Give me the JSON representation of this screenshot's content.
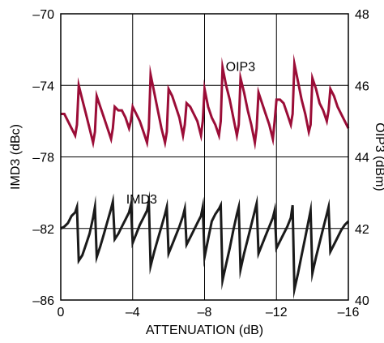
{
  "chart_data": {
    "type": "line",
    "xlabel": "ATTENUATION (dB)",
    "ylabel_left": "IMD3 (dBc)",
    "ylabel_right": "OIP3 (dBm)",
    "xlim": [
      0,
      -16
    ],
    "ylim_left": [
      -86,
      -70
    ],
    "ylim_right": [
      40,
      48
    ],
    "x_ticks": [
      0,
      -4,
      -8,
      -12,
      -16
    ],
    "x_tick_labels": [
      "0",
      "–4",
      "–8",
      "–12",
      "–16"
    ],
    "y_left_ticks": [
      -70,
      -74,
      -78,
      -82,
      -86
    ],
    "y_left_tick_labels": [
      "–70",
      "–74",
      "–78",
      "–82",
      "–86"
    ],
    "y_right_ticks": [
      48,
      46,
      44,
      42,
      40
    ],
    "y_right_tick_labels": [
      "48",
      "46",
      "44",
      "42",
      "40"
    ],
    "grid": true,
    "series": [
      {
        "name": "OIP3",
        "axis": "right",
        "color": "#9b0d37",
        "x": [
          0,
          -0.2,
          -0.4,
          -0.6,
          -0.8,
          -0.9,
          -1.0,
          -1.2,
          -1.4,
          -1.6,
          -1.8,
          -1.9,
          -2.0,
          -2.2,
          -2.4,
          -2.6,
          -2.8,
          -2.9,
          -3.0,
          -3.2,
          -3.4,
          -3.6,
          -3.8,
          -3.9,
          -4.0,
          -4.2,
          -4.4,
          -4.6,
          -4.8,
          -4.9,
          -5.0,
          -5.2,
          -5.4,
          -5.6,
          -5.8,
          -5.9,
          -6.0,
          -6.2,
          -6.4,
          -6.6,
          -6.8,
          -6.9,
          -7.0,
          -7.2,
          -7.4,
          -7.6,
          -7.8,
          -7.9,
          -8.0,
          -8.2,
          -8.4,
          -8.6,
          -8.8,
          -8.9,
          -9.0,
          -9.2,
          -9.4,
          -9.6,
          -9.8,
          -9.9,
          -10.0,
          -10.2,
          -10.4,
          -10.6,
          -10.8,
          -10.9,
          -11.0,
          -11.2,
          -11.4,
          -11.6,
          -11.8,
          -11.9,
          -12.0,
          -12.2,
          -12.4,
          -12.6,
          -12.8,
          -12.9,
          -13.0,
          -13.2,
          -13.4,
          -13.6,
          -13.8,
          -13.9,
          -14.0,
          -14.2,
          -14.4,
          -14.6,
          -14.8,
          -14.9,
          -15.0,
          -15.2,
          -15.4,
          -15.6,
          -15.8,
          -16.0
        ],
        "values": [
          45.2,
          45.2,
          45.0,
          44.8,
          44.6,
          44.9,
          46.0,
          45.6,
          45.2,
          44.8,
          44.4,
          44.7,
          45.7,
          45.4,
          45.1,
          44.8,
          44.5,
          44.8,
          45.4,
          45.3,
          45.3,
          45.1,
          44.8,
          45.0,
          45.4,
          45.2,
          45.0,
          44.7,
          44.4,
          44.8,
          46.3,
          45.8,
          45.3,
          44.8,
          44.4,
          44.7,
          45.9,
          45.7,
          45.4,
          45.1,
          44.6,
          44.9,
          45.5,
          45.4,
          45.2,
          45.0,
          44.6,
          45.0,
          45.9,
          45.4,
          45.1,
          44.9,
          44.6,
          45.0,
          46.5,
          46.0,
          45.6,
          45.1,
          44.6,
          44.9,
          46.2,
          45.8,
          45.3,
          44.9,
          44.4,
          44.8,
          45.8,
          45.5,
          45.2,
          44.9,
          44.5,
          45.0,
          45.6,
          45.6,
          45.5,
          45.2,
          44.9,
          45.2,
          46.6,
          46.1,
          45.6,
          45.2,
          44.7,
          44.9,
          46.2,
          45.9,
          45.5,
          45.3,
          45.0,
          45.3,
          45.9,
          45.7,
          45.4,
          45.2,
          45.0,
          44.8
        ]
      },
      {
        "name": "IMD3",
        "axis": "left",
        "color": "#1a1a1a",
        "x": [
          0,
          -0.2,
          -0.4,
          -0.6,
          -0.8,
          -0.9,
          -1.0,
          -1.2,
          -1.4,
          -1.6,
          -1.8,
          -1.9,
          -2.0,
          -2.2,
          -2.4,
          -2.6,
          -2.8,
          -2.9,
          -3.0,
          -3.2,
          -3.4,
          -3.6,
          -3.8,
          -3.9,
          -4.0,
          -4.2,
          -4.4,
          -4.6,
          -4.8,
          -4.9,
          -5.0,
          -5.2,
          -5.4,
          -5.6,
          -5.8,
          -5.9,
          -6.0,
          -6.2,
          -6.4,
          -6.6,
          -6.8,
          -6.9,
          -7.0,
          -7.2,
          -7.4,
          -7.6,
          -7.8,
          -7.9,
          -8.0,
          -8.2,
          -8.4,
          -8.6,
          -8.8,
          -8.9,
          -9.0,
          -9.2,
          -9.4,
          -9.6,
          -9.8,
          -9.9,
          -10.0,
          -10.2,
          -10.4,
          -10.6,
          -10.8,
          -10.9,
          -11.0,
          -11.2,
          -11.4,
          -11.6,
          -11.8,
          -11.9,
          -12.0,
          -12.2,
          -12.4,
          -12.6,
          -12.8,
          -12.9,
          -13.0,
          -13.2,
          -13.4,
          -13.6,
          -13.8,
          -13.9,
          -14.0,
          -14.2,
          -14.4,
          -14.6,
          -14.8,
          -14.9,
          -15.0,
          -15.2,
          -15.4,
          -15.6,
          -15.8,
          -16.0
        ],
        "values": [
          -82.0,
          -81.9,
          -81.7,
          -81.3,
          -81.1,
          -80.8,
          -83.8,
          -83.5,
          -82.9,
          -82.3,
          -81.4,
          -80.8,
          -83.6,
          -83.0,
          -82.3,
          -81.6,
          -80.9,
          -80.5,
          -82.6,
          -82.3,
          -81.9,
          -81.5,
          -81.1,
          -80.7,
          -82.8,
          -82.3,
          -81.8,
          -81.4,
          -81.0,
          -80.5,
          -84.1,
          -83.3,
          -82.6,
          -81.9,
          -81.2,
          -80.8,
          -83.4,
          -82.9,
          -82.4,
          -81.9,
          -81.3,
          -80.9,
          -82.9,
          -82.5,
          -82.1,
          -81.7,
          -81.3,
          -80.8,
          -83.6,
          -82.6,
          -81.6,
          -81.2,
          -80.9,
          -80.7,
          -84.9,
          -84.0,
          -83.1,
          -82.1,
          -81.2,
          -80.8,
          -84.3,
          -83.4,
          -82.6,
          -81.8,
          -81.0,
          -80.6,
          -83.4,
          -82.9,
          -82.4,
          -81.9,
          -81.4,
          -81.0,
          -83.1,
          -82.7,
          -82.3,
          -81.9,
          -81.4,
          -80.7,
          -85.4,
          -84.5,
          -83.5,
          -82.5,
          -81.5,
          -81.0,
          -84.5,
          -83.6,
          -82.8,
          -82.0,
          -81.2,
          -80.8,
          -83.3,
          -82.9,
          -82.5,
          -82.1,
          -81.8,
          -81.6
        ]
      }
    ],
    "annotations": [
      {
        "text": "OIP3",
        "x": -10.0,
        "y_right": 46.4
      },
      {
        "text": "IMD3",
        "x": -4.5,
        "y_left": -80.6
      }
    ]
  }
}
